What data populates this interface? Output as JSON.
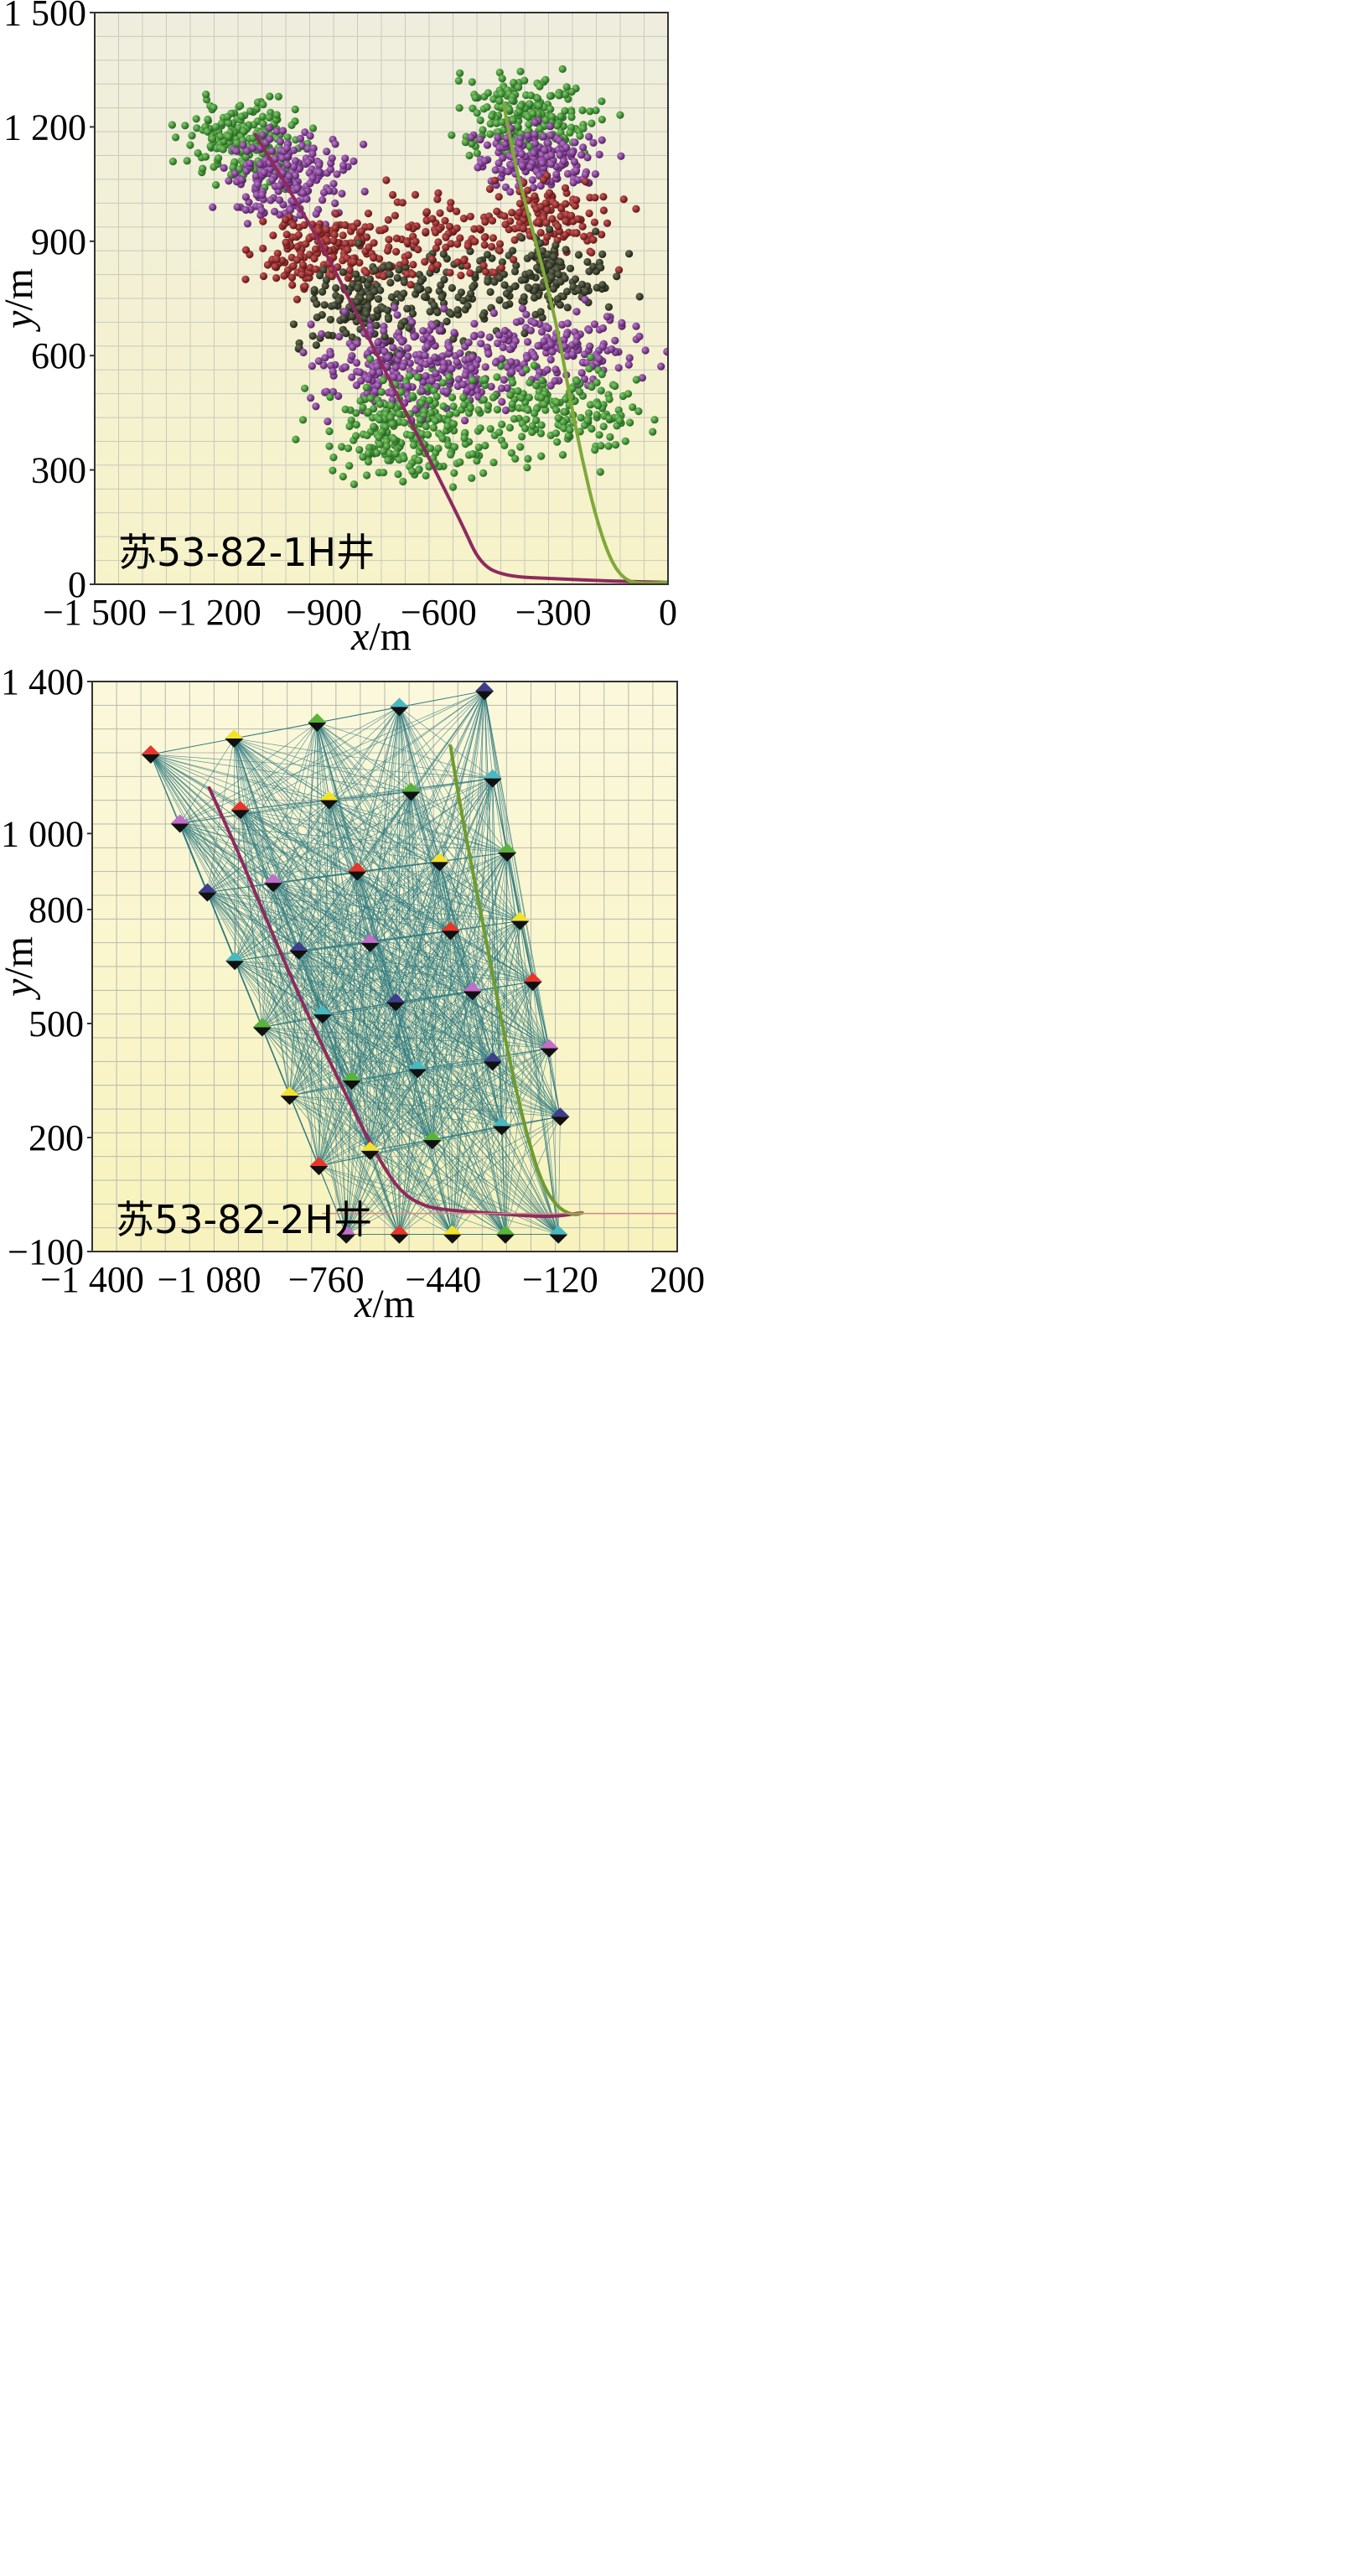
{
  "chart_data": [
    {
      "type": "scatter",
      "panel_label": "苏53-82-1H井",
      "xlabel_var": "x",
      "xlabel_unit": "/m",
      "ylabel_var": "y",
      "ylabel_unit": "/m",
      "xlim": [
        -1500,
        0
      ],
      "ylim": [
        0,
        1500
      ],
      "x_tick_labels": [
        "−1 500",
        "−1 200",
        "−900",
        "−600",
        "−300",
        "0"
      ],
      "x_tick_values": [
        -1500,
        -1200,
        -900,
        -600,
        -300,
        0
      ],
      "y_tick_labels": [
        "0",
        "300",
        "600",
        "900",
        "1 200",
        "1 500"
      ],
      "y_tick_values": [
        0,
        300,
        600,
        900,
        1200,
        1500
      ],
      "grid": true,
      "colors": {
        "bg_top": "#efeede",
        "bg_bottom": "#f7f3c9",
        "grid": "#c9c9bd",
        "green": "#2f7f2a",
        "purple": "#7a2c8a",
        "red": "#8c1f1f",
        "dark": "#2c3222",
        "well_left": "#8e2a5e",
        "well_right": "#7fa83a"
      },
      "series": [
        {
          "kind": "well_trajectory",
          "color_key": "well_left",
          "points": [
            [
              -1080,
              1180
            ],
            [
              -1000,
              1050
            ],
            [
              -900,
              880
            ],
            [
              -830,
              740
            ],
            [
              -760,
              600
            ],
            [
              -690,
              460
            ],
            [
              -620,
              320
            ],
            [
              -540,
              160
            ],
            [
              -490,
              50
            ],
            [
              -420,
              20
            ],
            [
              -300,
              15
            ],
            [
              -150,
              8
            ],
            [
              0,
              5
            ]
          ]
        },
        {
          "kind": "well_trajectory",
          "color_key": "well_right",
          "points": [
            [
              -430,
              1260
            ],
            [
              -400,
              1100
            ],
            [
              -360,
              950
            ],
            [
              -320,
              800
            ],
            [
              -285,
              650
            ],
            [
              -255,
              480
            ],
            [
              -225,
              330
            ],
            [
              -190,
              180
            ],
            [
              -150,
              60
            ],
            [
              -110,
              8
            ],
            [
              -60,
              2
            ],
            [
              0,
              5
            ]
          ]
        },
        {
          "kind": "event_cluster",
          "color_key": "green",
          "center": [
            -1100,
            1160
          ],
          "spread": [
            100,
            65
          ],
          "count": 220
        },
        {
          "kind": "event_cluster",
          "color_key": "purple",
          "center": [
            -1000,
            1060
          ],
          "spread": [
            110,
            80
          ],
          "count": 200
        },
        {
          "kind": "event_cluster",
          "color_key": "red",
          "center": [
            -880,
            870
          ],
          "spread": [
            120,
            70
          ],
          "count": 200
        },
        {
          "kind": "event_cluster",
          "color_key": "dark",
          "center": [
            -820,
            730
          ],
          "spread": [
            110,
            75
          ],
          "count": 110
        },
        {
          "kind": "event_cluster",
          "color_key": "purple",
          "center": [
            -720,
            580
          ],
          "spread": [
            130,
            80
          ],
          "count": 170
        },
        {
          "kind": "event_cluster",
          "color_key": "green",
          "center": [
            -710,
            400
          ],
          "spread": [
            130,
            90
          ],
          "count": 200
        },
        {
          "kind": "event_cluster",
          "color_key": "green",
          "center": [
            -370,
            1230
          ],
          "spread": [
            120,
            75
          ],
          "count": 220
        },
        {
          "kind": "event_cluster",
          "color_key": "purple",
          "center": [
            -340,
            1120
          ],
          "spread": [
            110,
            55
          ],
          "count": 180
        },
        {
          "kind": "event_cluster",
          "color_key": "red",
          "center": [
            -320,
            960
          ],
          "spread": [
            110,
            60
          ],
          "count": 130
        },
        {
          "kind": "event_cluster",
          "color_key": "dark",
          "center": [
            -320,
            810
          ],
          "spread": [
            110,
            60
          ],
          "count": 140
        },
        {
          "kind": "event_cluster",
          "color_key": "purple",
          "center": [
            -280,
            620
          ],
          "spread": [
            150,
            75
          ],
          "count": 160
        },
        {
          "kind": "event_cluster",
          "color_key": "green",
          "center": [
            -260,
            460
          ],
          "spread": [
            130,
            80
          ],
          "count": 160
        },
        {
          "kind": "event_cluster",
          "color_key": "dark",
          "center": [
            -600,
            760
          ],
          "spread": [
            150,
            90
          ],
          "count": 110
        },
        {
          "kind": "event_cluster",
          "color_key": "purple",
          "center": [
            -560,
            560
          ],
          "spread": [
            120,
            80
          ],
          "count": 110
        },
        {
          "kind": "event_cluster",
          "color_key": "red",
          "center": [
            -600,
            920
          ],
          "spread": [
            120,
            80
          ],
          "count": 90
        },
        {
          "kind": "event_cluster",
          "color_key": "green",
          "center": [
            -560,
            420
          ],
          "spread": [
            100,
            90
          ],
          "count": 80
        }
      ]
    },
    {
      "type": "scatter",
      "panel_label": "苏53-82-2H井",
      "xlabel_var": "x",
      "xlabel_unit": "/m",
      "ylabel_var": "y",
      "ylabel_unit": "/m",
      "xlim": [
        -1400,
        200
      ],
      "ylim": [
        -100,
        1400
      ],
      "x_tick_labels": [
        "−1 400",
        "−1 080",
        "−760",
        "−440",
        "−120",
        "200"
      ],
      "x_tick_values": [
        -1400,
        -1080,
        -760,
        -440,
        -120,
        200
      ],
      "y_tick_labels": [
        "−100",
        "200",
        "500",
        "800",
        "1 000",
        "1 400"
      ],
      "y_tick_values": [
        -100,
        200,
        500,
        800,
        1000,
        1400
      ],
      "grid": true,
      "colors": {
        "bg_top": "#fbf8dc",
        "bg_bottom": "#f8f3bd",
        "grid": "#b8b8ae",
        "mesh": "#2e7a80",
        "well_left": "#8e2a5e",
        "well_right": "#6f9a2e",
        "baseline": "#d08a8a",
        "diamond_tops": [
          "#e8362a",
          "#c36ec8",
          "#3e3e8c",
          "#4ab8c0",
          "#f2e22a",
          "#59b33a"
        ]
      },
      "nodes": [
        [
          -1240,
          1208
        ],
        [
          -1012,
          1250
        ],
        [
          -785,
          1292
        ],
        [
          -560,
          1333
        ],
        [
          -327,
          1375
        ],
        [
          -1160,
          1026
        ],
        [
          -995,
          1062
        ],
        [
          -752,
          1088
        ],
        [
          -528,
          1110
        ],
        [
          -305,
          1145
        ],
        [
          -1085,
          845
        ],
        [
          -905,
          870
        ],
        [
          -675,
          900
        ],
        [
          -450,
          925
        ],
        [
          -265,
          950
        ],
        [
          -1010,
          665
        ],
        [
          -835,
          692
        ],
        [
          -640,
          712
        ],
        [
          -420,
          744
        ],
        [
          -230,
          770
        ],
        [
          -935,
          490
        ],
        [
          -770,
          524
        ],
        [
          -570,
          556
        ],
        [
          -360,
          585
        ],
        [
          -195,
          610
        ],
        [
          -860,
          310
        ],
        [
          -690,
          350
        ],
        [
          -510,
          380
        ],
        [
          -305,
          400
        ],
        [
          -150,
          435
        ],
        [
          -780,
          125
        ],
        [
          -640,
          165
        ],
        [
          -470,
          193
        ],
        [
          -280,
          230
        ],
        [
          -120,
          255
        ],
        [
          -705,
          -55
        ],
        [
          -560,
          -55
        ],
        [
          -415,
          -55
        ],
        [
          -270,
          -55
        ],
        [
          -125,
          -55
        ]
      ],
      "node_colors": [
        "#e8362a",
        "#f2e22a",
        "#59b33a",
        "#4ab8c0",
        "#3e3e8c",
        "#c36ec8",
        "#e8362a",
        "#f2e22a",
        "#59b33a",
        "#4ab8c0",
        "#3e3e8c",
        "#c36ec8",
        "#e8362a",
        "#f2e22a",
        "#59b33a",
        "#4ab8c0",
        "#3e3e8c",
        "#c36ec8",
        "#e8362a",
        "#f2e22a",
        "#59b33a",
        "#4ab8c0",
        "#3e3e8c",
        "#c36ec8",
        "#e8362a",
        "#f2e22a",
        "#59b33a",
        "#4ab8c0",
        "#3e3e8c",
        "#c36ec8",
        "#e8362a",
        "#f2e22a",
        "#59b33a",
        "#4ab8c0",
        "#3e3e8c",
        "#c36ec8",
        "#e8362a",
        "#f2e22a",
        "#59b33a",
        "#4ab8c0"
      ],
      "series": [
        {
          "kind": "well_trajectory",
          "color_key": "well_left",
          "points": [
            [
              -1080,
              1120
            ],
            [
              -1000,
              950
            ],
            [
              -900,
              720
            ],
            [
              -800,
              500
            ],
            [
              -700,
              300
            ],
            [
              -620,
              150
            ],
            [
              -560,
              60
            ],
            [
              -500,
              22
            ],
            [
              -440,
              10
            ],
            [
              -300,
              0
            ],
            [
              -150,
              -10
            ],
            [
              -60,
              2
            ]
          ]
        },
        {
          "kind": "well_trajectory",
          "color_key": "well_right",
          "points": [
            [
              -420,
              1230
            ],
            [
              -395,
              1080
            ],
            [
              -355,
              880
            ],
            [
              -315,
              680
            ],
            [
              -275,
              480
            ],
            [
              -235,
              300
            ],
            [
              -195,
              150
            ],
            [
              -160,
              60
            ],
            [
              -120,
              10
            ],
            [
              -80,
              -5
            ],
            [
              -60,
              2
            ]
          ]
        },
        {
          "kind": "baseline",
          "color_key": "baseline",
          "points": [
            [
              -770,
              0
            ],
            [
              200,
              0
            ]
          ]
        }
      ]
    }
  ]
}
